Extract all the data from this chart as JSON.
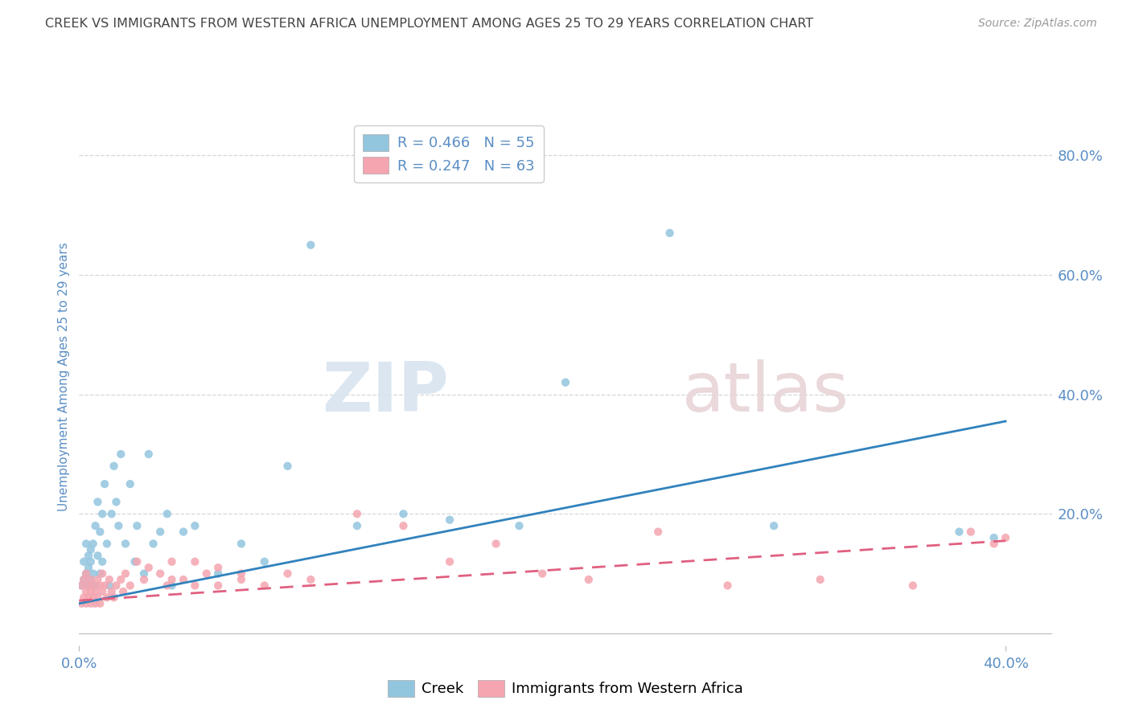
{
  "title": "CREEK VS IMMIGRANTS FROM WESTERN AFRICA UNEMPLOYMENT AMONG AGES 25 TO 29 YEARS CORRELATION CHART",
  "source": "Source: ZipAtlas.com",
  "ylabel": "Unemployment Among Ages 25 to 29 years",
  "xlim": [
    0.0,
    0.42
  ],
  "ylim": [
    -0.02,
    0.88
  ],
  "yticks_right": [
    0.2,
    0.4,
    0.6,
    0.8
  ],
  "ytick_labels_right": [
    "20.0%",
    "40.0%",
    "60.0%",
    "80.0%"
  ],
  "creek_color": "#92c5de",
  "creek_line_color": "#3182bd",
  "immigrants_color": "#f4a5b0",
  "immigrants_line_color": "#e06080",
  "watermark_zip": "ZIP",
  "watermark_atlas": "atlas",
  "legend_r1": "R = 0.466",
  "legend_n1": "N = 55",
  "legend_r2": "R = 0.247",
  "legend_n2": "N = 63",
  "creek_x": [
    0.001,
    0.002,
    0.002,
    0.003,
    0.003,
    0.004,
    0.004,
    0.004,
    0.005,
    0.005,
    0.005,
    0.006,
    0.006,
    0.007,
    0.007,
    0.008,
    0.008,
    0.009,
    0.009,
    0.01,
    0.01,
    0.011,
    0.012,
    0.013,
    0.014,
    0.015,
    0.016,
    0.017,
    0.018,
    0.02,
    0.022,
    0.024,
    0.025,
    0.028,
    0.03,
    0.032,
    0.035,
    0.038,
    0.04,
    0.045,
    0.05,
    0.06,
    0.07,
    0.08,
    0.09,
    0.1,
    0.12,
    0.14,
    0.16,
    0.19,
    0.21,
    0.255,
    0.3,
    0.38,
    0.395
  ],
  "creek_y": [
    0.08,
    0.12,
    0.09,
    0.15,
    0.1,
    0.13,
    0.08,
    0.11,
    0.14,
    0.09,
    0.12,
    0.1,
    0.15,
    0.08,
    0.18,
    0.13,
    0.22,
    0.1,
    0.17,
    0.12,
    0.2,
    0.25,
    0.15,
    0.08,
    0.2,
    0.28,
    0.22,
    0.18,
    0.3,
    0.15,
    0.25,
    0.12,
    0.18,
    0.1,
    0.3,
    0.15,
    0.17,
    0.2,
    0.08,
    0.17,
    0.18,
    0.1,
    0.15,
    0.12,
    0.28,
    0.65,
    0.18,
    0.2,
    0.19,
    0.18,
    0.42,
    0.67,
    0.18,
    0.17,
    0.16
  ],
  "immigrants_x": [
    0.001,
    0.001,
    0.002,
    0.002,
    0.003,
    0.003,
    0.003,
    0.004,
    0.004,
    0.005,
    0.005,
    0.005,
    0.006,
    0.006,
    0.007,
    0.007,
    0.008,
    0.008,
    0.009,
    0.009,
    0.01,
    0.01,
    0.011,
    0.012,
    0.013,
    0.014,
    0.015,
    0.016,
    0.018,
    0.019,
    0.02,
    0.022,
    0.025,
    0.028,
    0.03,
    0.035,
    0.038,
    0.04,
    0.045,
    0.05,
    0.055,
    0.06,
    0.07,
    0.08,
    0.09,
    0.1,
    0.12,
    0.14,
    0.16,
    0.18,
    0.2,
    0.22,
    0.25,
    0.28,
    0.32,
    0.36,
    0.385,
    0.395,
    0.4,
    0.04,
    0.05,
    0.06,
    0.07
  ],
  "immigrants_y": [
    0.05,
    0.08,
    0.06,
    0.09,
    0.05,
    0.07,
    0.1,
    0.06,
    0.08,
    0.05,
    0.07,
    0.09,
    0.06,
    0.08,
    0.05,
    0.07,
    0.06,
    0.09,
    0.05,
    0.08,
    0.07,
    0.1,
    0.08,
    0.06,
    0.09,
    0.07,
    0.06,
    0.08,
    0.09,
    0.07,
    0.1,
    0.08,
    0.12,
    0.09,
    0.11,
    0.1,
    0.08,
    0.12,
    0.09,
    0.08,
    0.1,
    0.11,
    0.09,
    0.08,
    0.1,
    0.09,
    0.2,
    0.18,
    0.12,
    0.15,
    0.1,
    0.09,
    0.17,
    0.08,
    0.09,
    0.08,
    0.17,
    0.15,
    0.16,
    0.09,
    0.12,
    0.08,
    0.1
  ],
  "creek_trend": [
    0.05,
    0.355
  ],
  "immigrants_trend": [
    0.055,
    0.155
  ],
  "background_color": "#ffffff",
  "grid_color": "#cccccc",
  "title_color": "#444444",
  "axis_label_color": "#5b8ec4",
  "tick_color": "#5b8ec4"
}
